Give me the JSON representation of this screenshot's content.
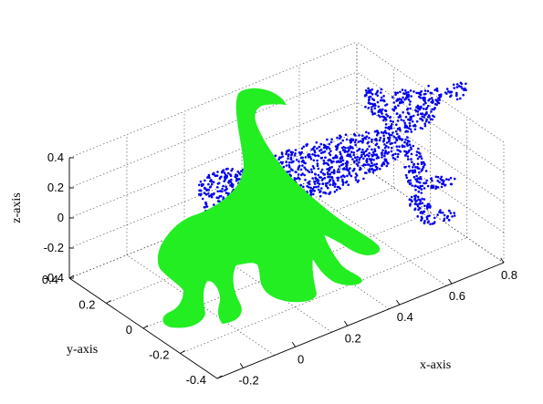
{
  "chart_data": {
    "type": "scatter",
    "projection": "3d",
    "grid": true,
    "xlabel": "x-axis",
    "ylabel": "y-axis",
    "zlabel": "z-axis",
    "xlim": [
      -0.3,
      0.8
    ],
    "ylim": [
      -0.4,
      0.4
    ],
    "zlim": [
      -0.4,
      0.4
    ],
    "xticks": [
      "-0.2",
      "0",
      "0.2",
      "0.4",
      "0.6",
      "0.8"
    ],
    "yticks": [
      "-0.4",
      "-0.2",
      "0",
      "0.2",
      "0.4"
    ],
    "zticks": [
      "-0.4",
      "-0.2",
      "0",
      "0.2",
      "0.4"
    ],
    "series": [
      {
        "color": "#0000ee",
        "marker": "dot",
        "shape": "quadruped point cloud (dog-like)"
      },
      {
        "color": "#22ee22",
        "marker": "dot",
        "shape": "quadruped point cloud (long-necked)"
      }
    ]
  }
}
